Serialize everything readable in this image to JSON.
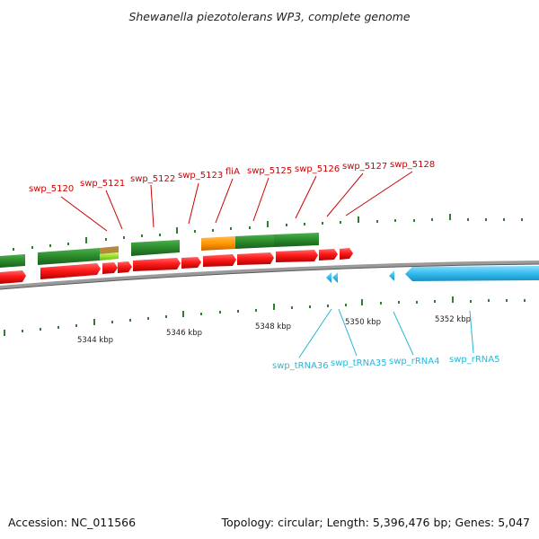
{
  "title": "Shewanella piezotolerans WP3, complete genome",
  "accession": "Accession: NC_011566",
  "summary": "Topology: circular; Length: 5,396,476 bp; Genes: 5,047",
  "gene_labels": [
    "swp_5120",
    "swp_5121",
    "swp_5122",
    "swp_5123",
    "fliA",
    "swp_5125",
    "swp_5126",
    "swp_5127",
    "swp_5128"
  ],
  "rna_labels": [
    "swp_tRNA36",
    "swp_tRNA35",
    "swp_rRNA4",
    "swp_rRNA5"
  ],
  "kbp_labels": [
    "5344 kbp",
    "5346 kbp",
    "5348 kbp",
    "5350 kbp",
    "5352 kbp"
  ],
  "colors": {
    "gene_label": "#cc0000",
    "rna_label": "#29b6d6",
    "cds_red": "#ff1a1a",
    "gene_green": "#2a8a2a",
    "fliA_orange": "#ff9900",
    "rna_blue": "#33bbee",
    "backbone": "#808080",
    "tick_green": "#2e7d32"
  }
}
